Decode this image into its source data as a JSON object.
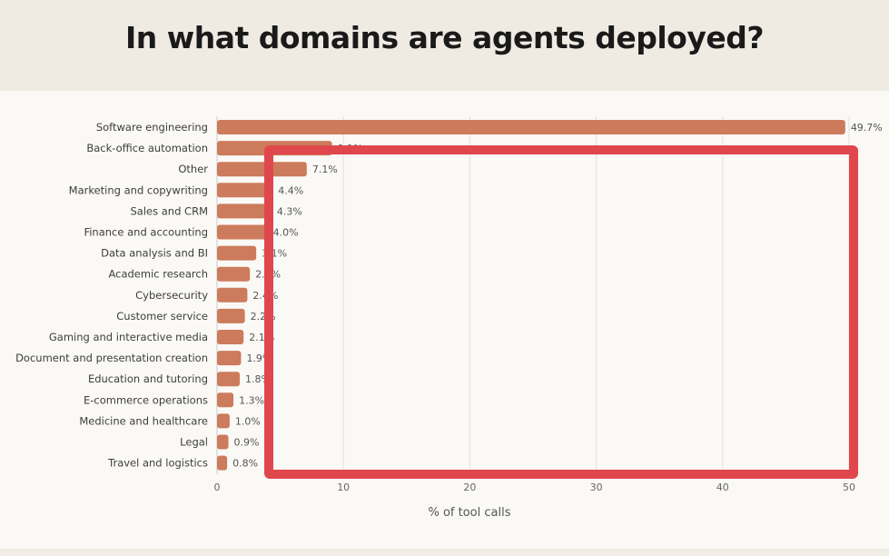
{
  "header": {
    "title": "In what domains are agents deployed?"
  },
  "chart_data": {
    "type": "bar",
    "orientation": "horizontal",
    "title": "In what domains are agents deployed?",
    "xlabel": "% of tool calls",
    "ylabel": "",
    "xlim": [
      0,
      50
    ],
    "xticks": [
      "0",
      "10",
      "20",
      "30",
      "40",
      "50"
    ],
    "grid": true,
    "bar_color": "#cc7b5c",
    "highlight_color": "#e0474c",
    "categories": [
      "Software engineering",
      "Back-office automation",
      "Other",
      "Marketing and copywriting",
      "Sales and CRM",
      "Finance and accounting",
      "Data analysis and BI",
      "Academic research",
      "Cybersecurity",
      "Customer service",
      "Gaming and interactive media",
      "Document and presentation creation",
      "Education and tutoring",
      "E-commerce operations",
      "Medicine and healthcare",
      "Legal",
      "Travel and logistics"
    ],
    "values": [
      49.7,
      9.1,
      7.1,
      4.4,
      4.3,
      4.0,
      3.1,
      2.6,
      2.4,
      2.2,
      2.1,
      1.9,
      1.8,
      1.3,
      1.0,
      0.9,
      0.8
    ],
    "value_labels": [
      "49.7%",
      "9.1%",
      "7.1%",
      "4.4%",
      "4.3%",
      "4.0%",
      "3.1%",
      "2.6%",
      "2.4%",
      "2.2%",
      "2.1%",
      "1.9%",
      "1.8%",
      "1.3%",
      "1.0%",
      "0.9%",
      "0.8%"
    ]
  }
}
